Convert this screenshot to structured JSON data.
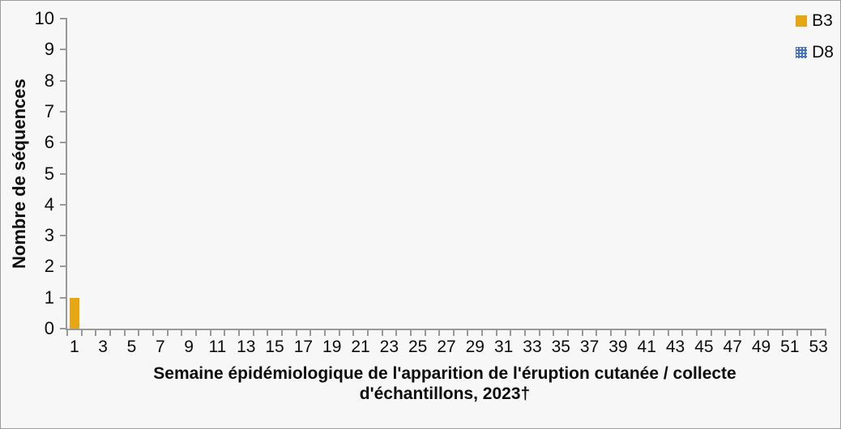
{
  "background_color": "#f7f7f7",
  "axis_color": "#999999",
  "text_color": "#0d0d0d",
  "chart_data": {
    "type": "bar",
    "title": "",
    "ylabel": "Nombre de séquences",
    "xlabel": "Semaine épidémiologique de l'apparition de l'éruption cutanée / collecte d'échantillons, 2023†",
    "xlabel_lines": [
      "Semaine épidémiologique de l'apparition de l'éruption cutanée / collecte",
      "d'échantillons, 2023†"
    ],
    "ylim": [
      0,
      10
    ],
    "ytick_step": 1,
    "grid": false,
    "legend_position": "top-right",
    "categories": [
      1,
      2,
      3,
      4,
      5,
      6,
      7,
      8,
      9,
      10,
      11,
      12,
      13,
      14,
      15,
      16,
      17,
      18,
      19,
      20,
      21,
      22,
      23,
      24,
      25,
      26,
      27,
      28,
      29,
      30,
      31,
      32,
      33,
      34,
      35,
      36,
      37,
      38,
      39,
      40,
      41,
      42,
      43,
      44,
      45,
      46,
      47,
      48,
      49,
      50,
      51,
      52,
      53
    ],
    "xtick_labels": [
      1,
      3,
      5,
      7,
      9,
      11,
      13,
      15,
      17,
      19,
      21,
      23,
      25,
      27,
      29,
      31,
      33,
      35,
      37,
      39,
      41,
      43,
      45,
      47,
      49,
      51,
      53
    ],
    "series": [
      {
        "name": "B3",
        "color": "#e7a614",
        "pattern": "solid",
        "values": [
          1,
          0,
          0,
          0,
          0,
          0,
          0,
          0,
          0,
          0,
          0,
          0,
          0,
          0,
          0,
          0,
          0,
          0,
          0,
          0,
          0,
          0,
          0,
          0,
          0,
          0,
          0,
          0,
          0,
          0,
          0,
          0,
          0,
          0,
          0,
          0,
          0,
          0,
          0,
          0,
          0,
          0,
          0,
          0,
          0,
          0,
          0,
          0,
          0,
          0,
          0,
          0,
          0
        ]
      },
      {
        "name": "D8",
        "color": "#4472c4",
        "pattern": "dots",
        "values": [
          0,
          0,
          0,
          0,
          0,
          0,
          0,
          0,
          0,
          0,
          0,
          0,
          0,
          0,
          0,
          0,
          0,
          0,
          0,
          0,
          0,
          0,
          0,
          0,
          0,
          0,
          0,
          0,
          0,
          0,
          0,
          0,
          0,
          0,
          0,
          0,
          0,
          0,
          0,
          0,
          0,
          0,
          0,
          0,
          0,
          0,
          0,
          0,
          0,
          0,
          0,
          0,
          0
        ]
      }
    ]
  }
}
